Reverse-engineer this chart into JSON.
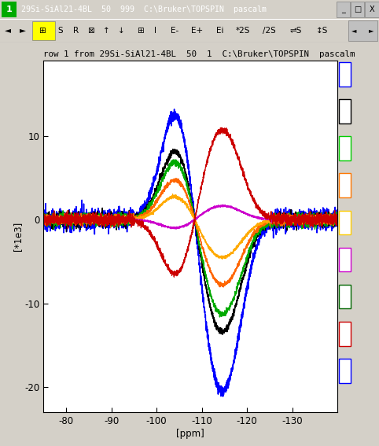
{
  "title": "row 1 from 29Si-SiAl21-4BL  50  1  C:\\Bruker\\TOPSPIN  pascalm",
  "window_title": "29Si-SiAl21-4BL  50  999  C:\\Bruker\\TOPSPIN  pascalm",
  "ylabel": "[*1e3]",
  "xlabel": "[ppm]",
  "xlim": [
    -75,
    -140
  ],
  "ylim": [
    -23,
    19
  ],
  "yticks": [
    10,
    0,
    -10,
    -20
  ],
  "xticks": [
    -80,
    -90,
    -100,
    -110,
    -120,
    -130
  ],
  "bg_color": "#d4d0c8",
  "plot_bg": "#ffffff",
  "curve_colors": [
    "blue",
    "#000000",
    "#00aa00",
    "#ff6600",
    "#ffaa00",
    "#cc00cc",
    "#cc0000"
  ],
  "curve_amplitudes": [
    1.0,
    0.65,
    0.55,
    0.38,
    0.22,
    -0.08,
    -0.52
  ],
  "peak_max": 20.5,
  "color_boxes_colors": [
    "blue",
    "#000000",
    "#00cc00",
    "#ff7700",
    "#ffcc00",
    "#cc00cc",
    "#006600",
    "#cc0000",
    "blue"
  ],
  "figsize": [
    4.82,
    5.67
  ],
  "dpi": 100
}
